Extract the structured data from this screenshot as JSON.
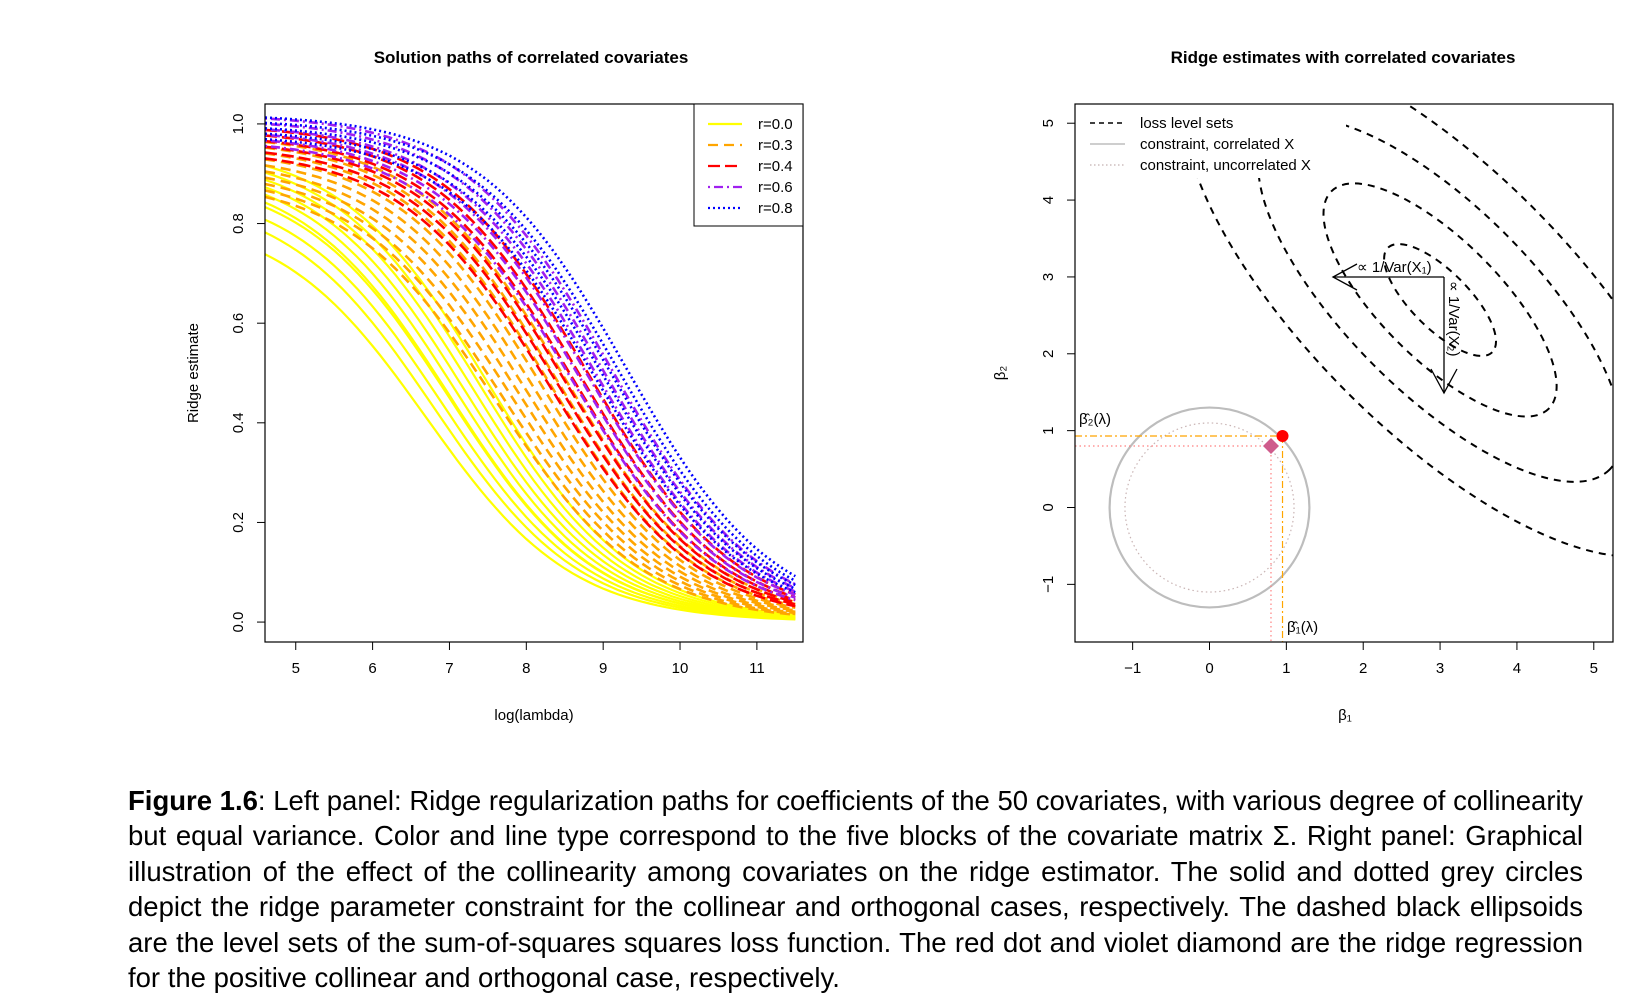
{
  "figure": {
    "caption_label": "Figure 1.6",
    "caption_text": ":   Left panel: Ridge regularization paths for coefficients of the 50 covariates, with various degree of collinearity but equal variance. Color and line type correspond to the five blocks of the covariate matrix Σ. Right panel: Graphical illustration of the effect of the collinearity among covariates on the ridge estimator. The solid and dotted grey circles depict the ridge parameter constraint for the collinear and orthogonal cases, respectively. The dashed black ellipsoids are the level sets of the sum-of-squares squares loss function. The red dot and violet diamond are the ridge regression for the positive collinear and orthogonal case, respectively."
  },
  "chart_data": [
    {
      "type": "line",
      "title": "Solution paths of correlated covariates",
      "xlabel": "log(lambda)",
      "ylabel": "Ridge estimate",
      "xlim": [
        4.6,
        11.6
      ],
      "ylim": [
        0,
        1.05
      ],
      "x_ticks": [
        5,
        6,
        7,
        8,
        9,
        10,
        11
      ],
      "y_ticks": [
        0.0,
        0.2,
        0.4,
        0.6,
        0.8,
        1.0
      ],
      "legend_position": "top-right",
      "series": [
        {
          "name": "r=0.0",
          "color": "#FFFF00",
          "dash": "solid",
          "midpoints": [
            6.7,
            6.8,
            6.9,
            7.0,
            7.0,
            7.1,
            7.2,
            7.3,
            7.4,
            7.5
          ],
          "starts": [
            0.82,
            0.86,
            0.88,
            0.9,
            0.91,
            0.92,
            0.93,
            0.94,
            0.95,
            0.96
          ]
        },
        {
          "name": "r=0.3",
          "color": "#FFA500",
          "dash": "dashed",
          "midpoints": [
            7.6,
            7.7,
            7.8,
            7.9,
            8.0,
            8.1,
            8.2,
            8.3,
            8.4,
            8.5
          ],
          "starts": [
            0.89,
            0.9,
            0.91,
            0.92,
            0.93,
            0.94,
            0.95,
            0.96,
            0.97,
            0.98
          ]
        },
        {
          "name": "r=0.4",
          "color": "#FF0000",
          "dash": "longdash",
          "midpoints": [
            8.3,
            8.4,
            8.5,
            8.6,
            8.7,
            8.8
          ],
          "starts": [
            0.95,
            0.96,
            0.97,
            0.98,
            0.99,
            1.0
          ]
        },
        {
          "name": "r=0.6",
          "color": "#A020F0",
          "dash": "dotdash",
          "midpoints": [
            8.6,
            8.7,
            8.8,
            8.9,
            9.0,
            9.1
          ],
          "starts": [
            0.97,
            0.98,
            0.99,
            1.0,
            1.01,
            1.02
          ]
        },
        {
          "name": "r=0.8",
          "color": "#0000FF",
          "dash": "dotted",
          "midpoints": [
            8.9,
            9.0,
            9.1,
            9.2,
            9.3
          ],
          "starts": [
            0.98,
            0.99,
            1.0,
            1.01,
            1.02
          ]
        }
      ]
    },
    {
      "type": "scatter",
      "title": "Ridge estimates with correlated covariates",
      "xlabel": "β₁",
      "ylabel": "β₂",
      "xlim": [
        -1.75,
        5.25
      ],
      "ylim": [
        -1.75,
        5.25
      ],
      "x_ticks": [
        -1,
        0,
        1,
        2,
        3,
        4,
        5
      ],
      "y_ticks": [
        -1,
        0,
        1,
        2,
        3,
        4,
        5
      ],
      "tick_labels": [
        "−1",
        "0",
        "1",
        "2",
        "3",
        "4",
        "5"
      ],
      "legend_position": "top-left",
      "legend": [
        "loss level sets",
        "constraint, correlated X",
        "constraint, uncorrelated X"
      ],
      "loss_center": [
        3.0,
        2.7
      ],
      "loss_levels": [
        0.6,
        1.25,
        1.95,
        2.75
      ],
      "constraint_correlated_radius": 1.3,
      "constraint_uncorrelated_radius": 1.1,
      "red_dot": [
        0.95,
        0.93
      ],
      "diamond": [
        0.8,
        0.8
      ],
      "point_labels": {
        "beta2": "β̂₂(λ)",
        "beta1": "β̂₁(λ)"
      },
      "annotations": {
        "var_x1": "∝ 1/Var(X₁)",
        "var_x2": "∝ 1/Var(X₂)"
      }
    }
  ]
}
